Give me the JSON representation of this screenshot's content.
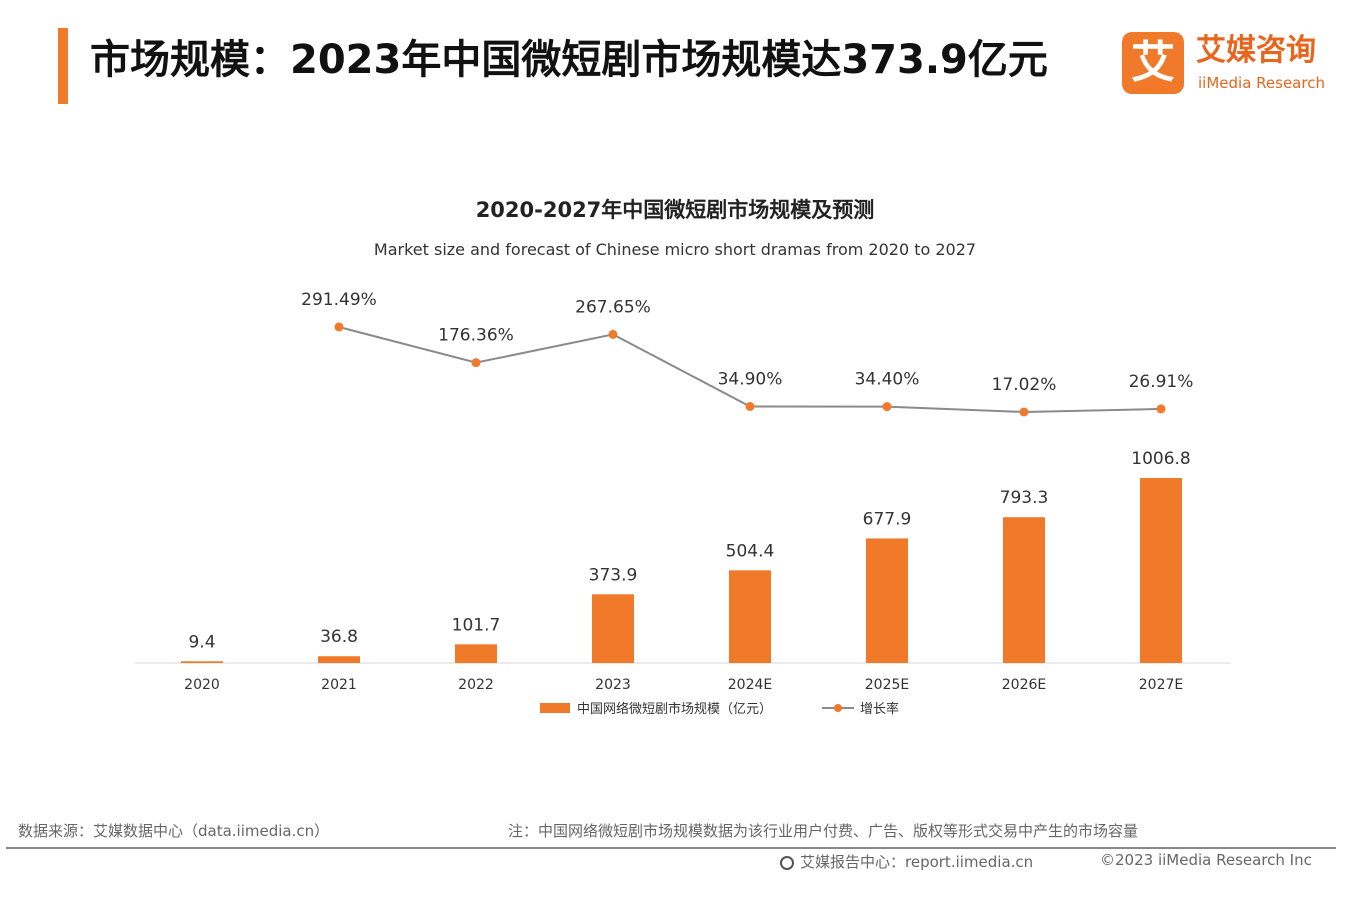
{
  "header": {
    "title": "市场规模：2023年中国微短剧市场规模达373.9亿元",
    "logo_mark": "艾",
    "logo_cn": "艾媒咨询",
    "logo_en": "iiMedia Research"
  },
  "chart_data": {
    "type": "bar",
    "title": "2020-2027年中国微短剧市场规模及预测",
    "subtitle": "Market size and forecast of Chinese micro short dramas from 2020 to 2027",
    "categories": [
      "2020",
      "2021",
      "2022",
      "2023",
      "2024E",
      "2025E",
      "2026E",
      "2027E"
    ],
    "series": [
      {
        "name": "中国网络微短剧市场规模（亿元）",
        "type": "bar",
        "values": [
          9.4,
          36.8,
          101.7,
          373.9,
          504.4,
          677.9,
          793.3,
          1006.8
        ],
        "labels": [
          "9.4",
          "36.8",
          "101.7",
          "373.9",
          "504.4",
          "677.9",
          "793.3",
          "1006.8"
        ]
      },
      {
        "name": "增长率",
        "type": "line",
        "values": [
          null,
          291.49,
          176.36,
          267.65,
          34.9,
          34.4,
          17.02,
          26.91
        ],
        "labels": [
          "",
          "291.49%",
          "176.36%",
          "267.65%",
          "34.90%",
          "34.40%",
          "17.02%",
          "26.91%"
        ]
      }
    ],
    "ylim": [
      0,
      1100
    ],
    "legend_position": "bottom",
    "grid": false,
    "colors": {
      "bar": "#f07a2a",
      "line": "#8a8a8a",
      "marker": "#f07a2a"
    }
  },
  "footer": {
    "source": "数据来源：艾媒数据中心（data.iimedia.cn）",
    "note": "注：中国网络微短剧市场规模数据为该行业用户付费、广告、版权等形式交易中产生的市场容量",
    "report": "艾媒报告中心：report.iimedia.cn",
    "copyright": "©2023  iiMedia Research Inc"
  },
  "colors": {
    "accent": "#f07a2a",
    "brand": "#e8651e"
  }
}
